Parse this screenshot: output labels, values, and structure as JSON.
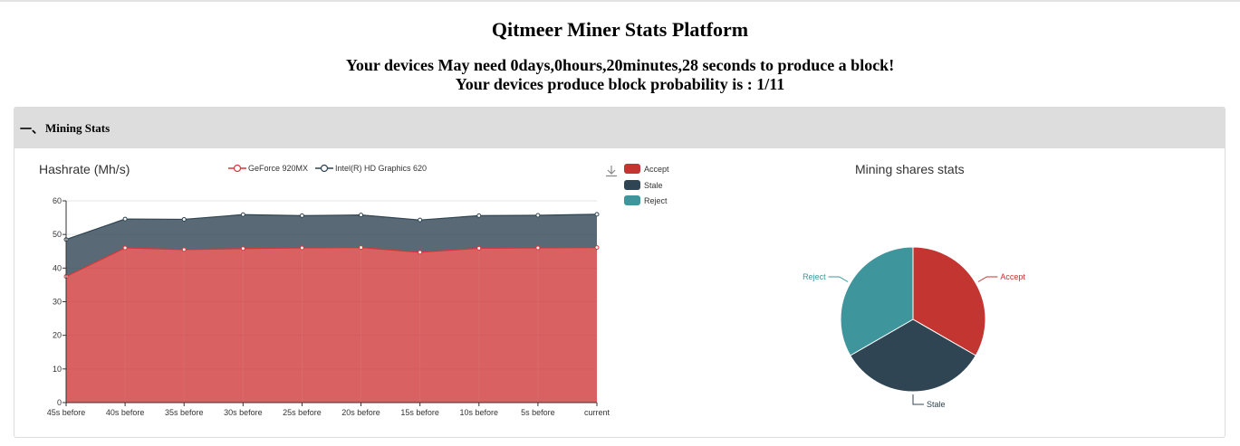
{
  "header": {
    "title": "Qitmeer Miner Stats Platform",
    "line1": "Your devices May need 0days,0hours,20minutes,28 seconds to produce a block!",
    "line2": "Your devices produce block probability is : 1/11"
  },
  "panel": {
    "number": "一、",
    "title": "Mining Stats"
  },
  "colors": {
    "gpu1": "#d0393b",
    "gpu2": "#2f4554",
    "accept": "#c23531",
    "stale": "#2f4554",
    "reject": "#3f959c"
  },
  "chart_data": [
    {
      "type": "area",
      "title": "Hashrate (Mh/s)",
      "stacked": true,
      "categories": [
        "45s before",
        "40s before",
        "35s before",
        "30s before",
        "25s before",
        "20s before",
        "15s before",
        "10s before",
        "5s before",
        "current"
      ],
      "series": [
        {
          "name": "GeForce 920MX",
          "values": [
            37.5,
            46,
            45.5,
            45.8,
            46,
            46.1,
            44.7,
            45.9,
            46,
            46.1
          ]
        },
        {
          "name": "Intel(R) HD Graphics 620",
          "values": [
            11,
            8.6,
            9,
            10.1,
            9.6,
            9.7,
            9.6,
            9.7,
            9.7,
            9.9
          ]
        }
      ],
      "ylim": [
        0,
        60
      ],
      "yticks": [
        0,
        10,
        20,
        30,
        40,
        50,
        60
      ],
      "legend_position": "top",
      "grid": true
    },
    {
      "type": "pie",
      "title": "Mining shares stats",
      "labels": [
        "Accept",
        "Stale",
        "Reject"
      ],
      "values": [
        1,
        1,
        1
      ],
      "legend_position": "top-left"
    }
  ]
}
